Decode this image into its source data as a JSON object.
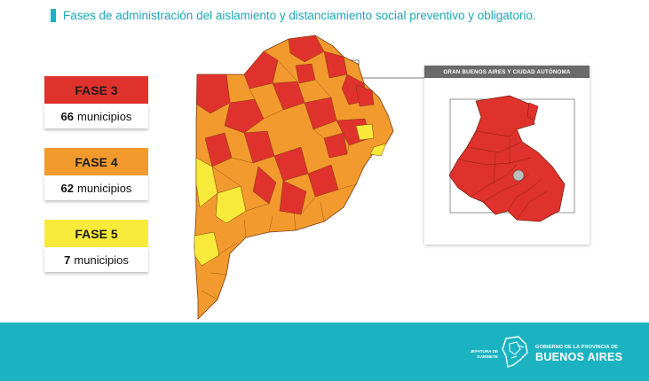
{
  "header": {
    "title": "Fases de administración del aislamiento y distanciamiento social preventivo y obligatorio."
  },
  "legend": [
    {
      "phase": "FASE 3",
      "count": "66",
      "unit": "municipios",
      "color": "#e0322c"
    },
    {
      "phase": "FASE 4",
      "count": "62",
      "unit": "municipios",
      "color": "#f39a2e"
    },
    {
      "phase": "FASE 5",
      "count": "7",
      "unit": "municipios",
      "color": "#f7ea3a"
    }
  ],
  "inset": {
    "title": "GRAN BUENOS AIRES Y CIUDAD AUTÓNOMA"
  },
  "footer": {
    "dept_line1": "JEFATURA DE",
    "dept_line2": "GABINETE",
    "gov_line1": "GOBIERNO DE LA PROVINCIA DE",
    "gov_line2": "BUENOS AIRES"
  },
  "colors": {
    "accent": "#1bb3c2",
    "fase3": "#e0322c",
    "fase4": "#f39a2e",
    "fase5": "#f7ea3a"
  }
}
